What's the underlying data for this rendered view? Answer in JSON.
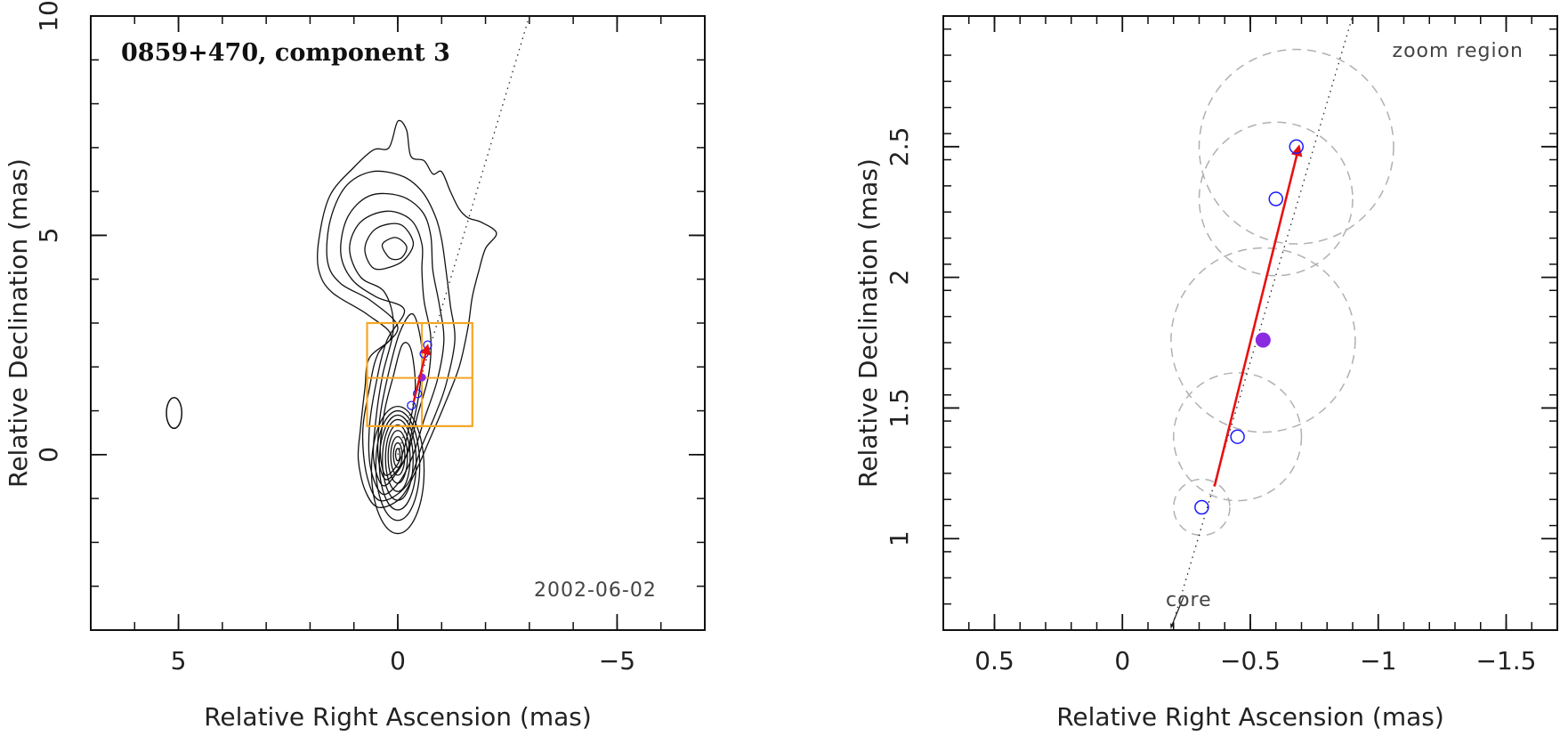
{
  "chart_data": [
    {
      "type": "contour",
      "title": "0859+470, component 3",
      "date_label": "2002-06-02",
      "xlabel": "Relative Right Ascension (mas)",
      "ylabel": "Relative Declination (mas)",
      "xlim": [
        7,
        -7
      ],
      "ylim": [
        -4,
        10
      ],
      "xticks": [
        5,
        0,
        -5
      ],
      "yticks": [
        0,
        5,
        10
      ],
      "tick_labels_x": [
        "5",
        "0",
        "−5"
      ],
      "tick_labels_y": [
        "0",
        "5",
        "10"
      ],
      "jet_axis": {
        "from": [
          0,
          0
        ],
        "to": [
          -3.0,
          10.0
        ]
      },
      "zoom_box": {
        "x": [
          0.7,
          -1.7
        ],
        "y": [
          0.65,
          3.0
        ]
      },
      "zoom_box_grid": {
        "x": -0.55,
        "y": 1.75
      },
      "beam": {
        "x": 5.1,
        "y": 0.95,
        "width": 0.35,
        "height": 0.7
      },
      "positions": [
        {
          "x": -0.31,
          "y": 1.12
        },
        {
          "x": -0.45,
          "y": 1.39
        },
        {
          "x": -0.6,
          "y": 2.3
        },
        {
          "x": -0.68,
          "y": 2.5
        }
      ],
      "mean_position": {
        "x": -0.55,
        "y": 1.76
      },
      "motion_vector": {
        "from": [
          -0.36,
          1.2
        ],
        "to": [
          -0.68,
          2.48
        ]
      },
      "contours": [
        {
          "points": [
            [
              0.15,
              2.7
            ],
            [
              0.7,
              3.2
            ],
            [
              1.5,
              3.7
            ],
            [
              1.8,
              4.2
            ],
            [
              1.8,
              4.9
            ],
            [
              1.55,
              5.9
            ],
            [
              1.0,
              6.55
            ],
            [
              0.55,
              6.95
            ],
            [
              0.2,
              7.0
            ],
            [
              0.0,
              7.6
            ],
            [
              -0.2,
              7.4
            ],
            [
              -0.3,
              6.8
            ],
            [
              -0.6,
              6.7
            ],
            [
              -0.8,
              6.4
            ],
            [
              -1.0,
              6.45
            ],
            [
              -1.2,
              6.0
            ],
            [
              -1.4,
              5.6
            ],
            [
              -1.6,
              5.4
            ],
            [
              -1.9,
              5.3
            ],
            [
              -2.25,
              5.05
            ],
            [
              -2.0,
              4.7
            ],
            [
              -1.85,
              4.2
            ],
            [
              -1.7,
              3.6
            ],
            [
              -1.6,
              2.9
            ],
            [
              -1.4,
              2.0
            ],
            [
              -1.05,
              1.1
            ],
            [
              -0.75,
              0.4
            ],
            [
              -0.4,
              -0.4
            ],
            [
              -0.05,
              -1.0
            ],
            [
              0.45,
              -1.2
            ],
            [
              0.75,
              -0.8
            ],
            [
              0.9,
              -0.1
            ],
            [
              0.85,
              0.6
            ],
            [
              0.75,
              1.5
            ],
            [
              0.65,
              2.2
            ]
          ]
        },
        {
          "points": [
            [
              0.0,
              2.9
            ],
            [
              0.6,
              3.5
            ],
            [
              1.3,
              3.9
            ],
            [
              1.6,
              4.4
            ],
            [
              1.55,
              5.3
            ],
            [
              1.2,
              6.1
            ],
            [
              0.6,
              6.45
            ],
            [
              -0.1,
              6.35
            ],
            [
              -0.55,
              6.0
            ],
            [
              -0.85,
              5.45
            ],
            [
              -1.0,
              4.9
            ],
            [
              -1.1,
              4.2
            ],
            [
              -1.2,
              3.4
            ],
            [
              -1.3,
              2.6
            ],
            [
              -1.1,
              1.6
            ],
            [
              -0.85,
              0.9
            ],
            [
              -0.55,
              0.2
            ],
            [
              -0.2,
              -0.7
            ],
            [
              0.4,
              -1.05
            ],
            [
              0.7,
              -0.5
            ],
            [
              0.8,
              0.5
            ],
            [
              0.65,
              1.5
            ],
            [
              0.45,
              2.3
            ]
          ]
        },
        {
          "points": [
            [
              -0.15,
              3.3
            ],
            [
              0.5,
              3.6
            ],
            [
              1.05,
              4.0
            ],
            [
              1.3,
              4.6
            ],
            [
              1.15,
              5.4
            ],
            [
              0.65,
              5.9
            ],
            [
              -0.05,
              5.9
            ],
            [
              -0.55,
              5.55
            ],
            [
              -0.75,
              5.0
            ],
            [
              -0.8,
              4.2
            ],
            [
              -0.95,
              3.4
            ],
            [
              -1.05,
              2.6
            ],
            [
              -0.9,
              1.7
            ],
            [
              -0.6,
              0.8
            ],
            [
              -0.35,
              0.0
            ],
            [
              -0.05,
              -0.6
            ],
            [
              0.35,
              -0.9
            ],
            [
              0.62,
              -0.3
            ],
            [
              0.65,
              0.6
            ],
            [
              0.5,
              1.6
            ],
            [
              0.25,
              2.6
            ]
          ]
        },
        {
          "points": [
            [
              0.3,
              3.7
            ],
            [
              0.85,
              4.05
            ],
            [
              1.1,
              4.7
            ],
            [
              0.85,
              5.3
            ],
            [
              0.25,
              5.55
            ],
            [
              -0.3,
              5.35
            ],
            [
              -0.55,
              4.8
            ],
            [
              -0.55,
              4.2
            ],
            [
              -0.6,
              3.5
            ],
            [
              -0.75,
              2.7
            ],
            [
              -0.7,
              1.8
            ],
            [
              -0.45,
              0.9
            ],
            [
              -0.25,
              0.1
            ],
            [
              0.05,
              -0.45
            ],
            [
              0.35,
              -0.7
            ],
            [
              0.55,
              -0.1
            ],
            [
              0.5,
              0.8
            ],
            [
              0.35,
              1.8
            ],
            [
              0.1,
              2.9
            ]
          ]
        },
        {
          "points": [
            [
              0.55,
              4.25
            ],
            [
              0.75,
              4.7
            ],
            [
              0.5,
              5.15
            ],
            [
              -0.05,
              5.25
            ],
            [
              -0.35,
              4.85
            ],
            [
              -0.2,
              4.5
            ],
            [
              0.1,
              4.3
            ]
          ]
        },
        {
          "points": [
            [
              0.25,
              4.55
            ],
            [
              0.35,
              4.8
            ],
            [
              0.05,
              4.95
            ],
            [
              -0.2,
              4.75
            ],
            [
              -0.1,
              4.5
            ],
            [
              0.1,
              4.45
            ]
          ]
        },
        {
          "points": [
            [
              -0.35,
              3.2
            ],
            [
              -0.55,
              2.4
            ],
            [
              -0.5,
              1.5
            ],
            [
              -0.35,
              0.7
            ],
            [
              -0.2,
              0.0
            ],
            [
              0.05,
              -0.4
            ],
            [
              0.3,
              -0.55
            ],
            [
              0.45,
              0.0
            ],
            [
              0.4,
              0.9
            ],
            [
              0.2,
              1.9
            ],
            [
              -0.05,
              2.8
            ]
          ]
        },
        {
          "points": [
            [
              -0.3,
              2.4
            ],
            [
              -0.4,
              1.5
            ],
            [
              -0.25,
              0.6
            ],
            [
              -0.1,
              0.0
            ],
            [
              0.1,
              -0.35
            ],
            [
              0.3,
              -0.45
            ],
            [
              0.4,
              0.1
            ],
            [
              0.3,
              1.0
            ],
            [
              0.1,
              1.8
            ],
            [
              -0.1,
              2.5
            ]
          ]
        }
      ],
      "core_ellipses": [
        {
          "rx": 0.6,
          "ry": 1.45,
          "cy": -0.35
        },
        {
          "rx": 0.5,
          "ry": 1.25,
          "cy": -0.25
        },
        {
          "rx": 0.42,
          "ry": 1.08,
          "cy": -0.18
        },
        {
          "rx": 0.35,
          "ry": 0.92,
          "cy": -0.12
        },
        {
          "rx": 0.28,
          "ry": 0.76,
          "cy": -0.08
        },
        {
          "rx": 0.22,
          "ry": 0.6,
          "cy": -0.05
        },
        {
          "rx": 0.16,
          "ry": 0.44,
          "cy": -0.03
        },
        {
          "rx": 0.1,
          "ry": 0.28,
          "cy": -0.01
        },
        {
          "rx": 0.05,
          "ry": 0.14,
          "cy": 0.0
        }
      ]
    },
    {
      "type": "scatter",
      "title": "zoom region",
      "core_label": "core",
      "xlabel": "Relative Right Ascension (mas)",
      "ylabel": "Relative Declination (mas)",
      "xlim": [
        0.7,
        -1.7
      ],
      "ylim": [
        0.65,
        3.0
      ],
      "xticks": [
        0.5,
        0,
        -0.5,
        -1,
        -1.5
      ],
      "yticks": [
        1,
        1.5,
        2,
        2.5
      ],
      "tick_labels_x": [
        "0.5",
        "0",
        "−0.5",
        "−1",
        "−1.5"
      ],
      "tick_labels_y": [
        "1",
        "1.5",
        "2",
        "2.5"
      ],
      "jet_axis": {
        "from": [
          -0.19,
          0.65
        ],
        "to": [
          -0.9,
          3.0
        ]
      },
      "core_arrow_tip": {
        "x": -0.19,
        "y": 0.66
      },
      "positions": [
        {
          "x": -0.31,
          "y": 1.12,
          "error_radius": 0.11
        },
        {
          "x": -0.45,
          "y": 1.39,
          "error_radius": 0.25
        },
        {
          "x": -0.6,
          "y": 2.3,
          "error_radius": 0.3
        },
        {
          "x": -0.68,
          "y": 2.5,
          "error_radius": 0.38
        }
      ],
      "mean_position": {
        "x": -0.55,
        "y": 1.76,
        "error_radius": 0.36
      },
      "motion_vector": {
        "from": [
          -0.36,
          1.2
        ],
        "to": [
          -0.69,
          2.5
        ]
      }
    }
  ],
  "colors": {
    "contour": "#111111",
    "zoom_box": "#f5a623",
    "position_marker": "#1a1aff",
    "mean_marker": "#8a2be2",
    "motion_vector": "#e81010",
    "error_circle": "#b0b0b0",
    "jet_axis": "#222222"
  }
}
